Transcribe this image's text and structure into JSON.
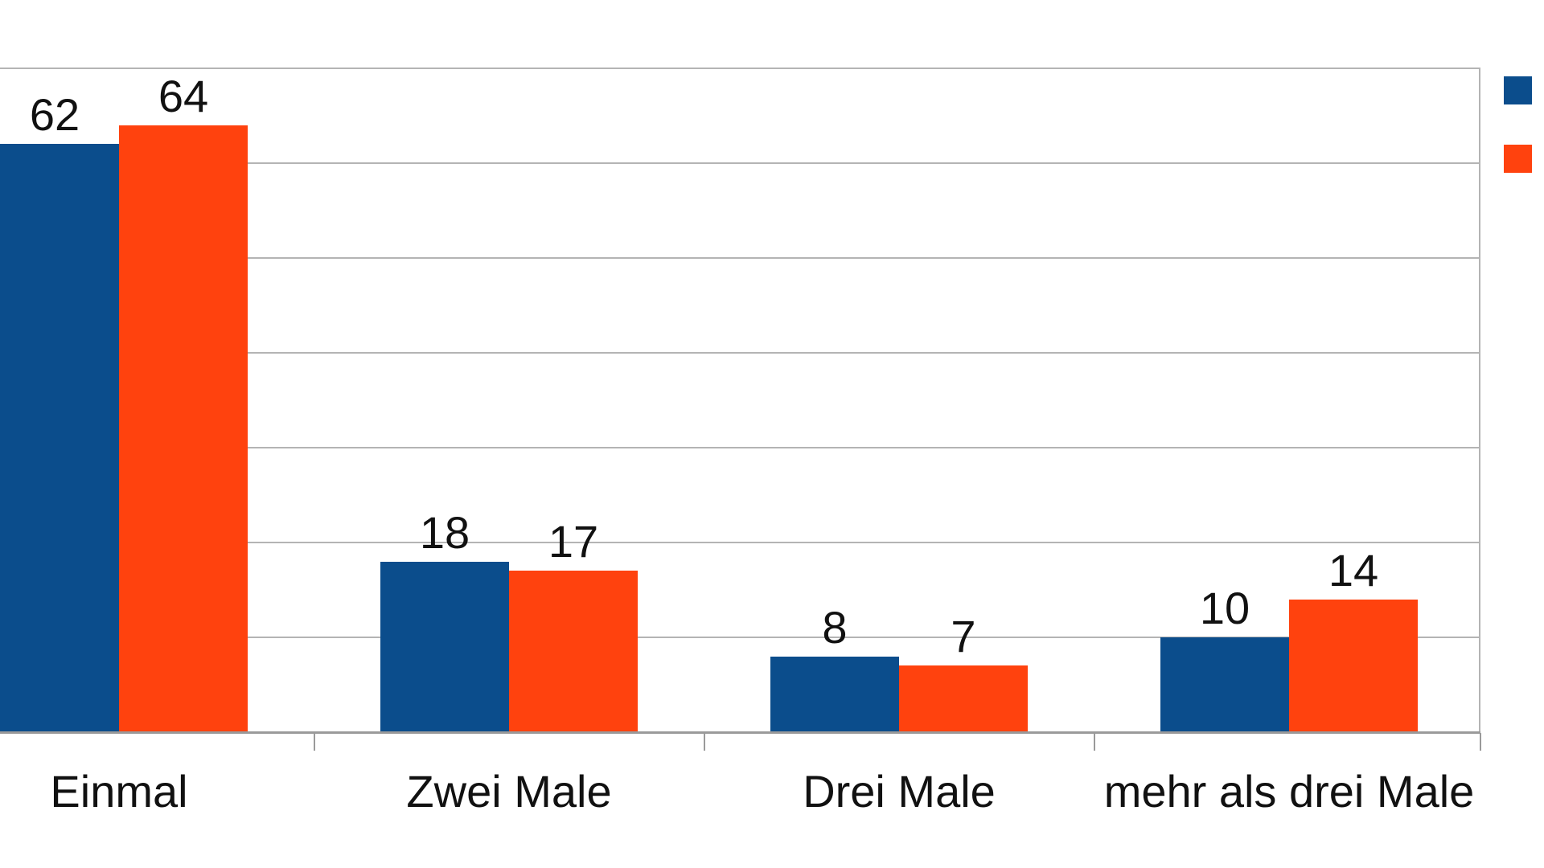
{
  "chart_data": {
    "type": "bar",
    "title": "",
    "categories": [
      "Einmal",
      "Zwei Male",
      "Drei Male",
      "mehr als drei Male"
    ],
    "series": [
      {
        "legend_label": "",
        "color_name": "blue",
        "color": "#0b4d8c",
        "values": [
          62,
          18,
          8,
          10
        ]
      },
      {
        "legend_label": "",
        "color_name": "orange",
        "color": "#ff420e",
        "values": [
          64,
          17,
          7,
          14
        ]
      }
    ],
    "data_labels_shown": true,
    "xlabel": "",
    "ylabel": "",
    "ylim": [
      0,
      70
    ],
    "y_tick_interval": 10,
    "y_tick_labels_visible": false,
    "grid": true,
    "legend_position": "top-right-outside",
    "legend_labels_cropped": true,
    "left_edge_cropped": true
  },
  "colors": {
    "gridline": "#b4b4b4",
    "axis": "#9a9a9a",
    "label_text": "#111111",
    "background": "#ffffff"
  }
}
